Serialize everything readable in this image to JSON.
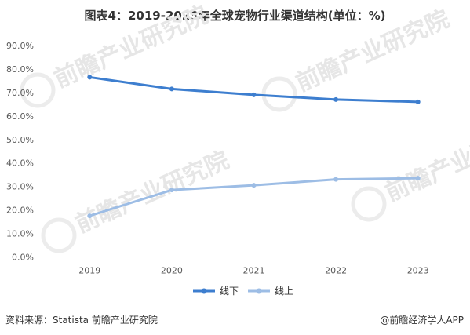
{
  "title": "图表4：2019-2023年全球宠物行业渠道结构(单位：%)",
  "footer": {
    "source": "资料来源：Statista 前瞻产业研究院",
    "brand": "@前瞻经济学人APP"
  },
  "watermark": {
    "text": "前瞻产业研究院"
  },
  "chart_data": {
    "type": "line",
    "title": "图表4：2019-2023年全球宠物行业渠道结构(单位：%)",
    "x": [
      "2019",
      "2020",
      "2021",
      "2022",
      "2023"
    ],
    "ylim": [
      0,
      90
    ],
    "yticks": [
      "0.0%",
      "10.0%",
      "20.0%",
      "30.0%",
      "40.0%",
      "50.0%",
      "60.0%",
      "70.0%",
      "80.0%",
      "90.0%"
    ],
    "grid": false,
    "legend_position": "bottom",
    "series": [
      {
        "name": "线下",
        "values": [
          76.5,
          71.5,
          69.0,
          67.0,
          66.0
        ],
        "color": "#3d7ecf"
      },
      {
        "name": "线上",
        "values": [
          17.5,
          28.5,
          30.5,
          33.0,
          33.5
        ],
        "color": "#9dbde5"
      }
    ]
  }
}
